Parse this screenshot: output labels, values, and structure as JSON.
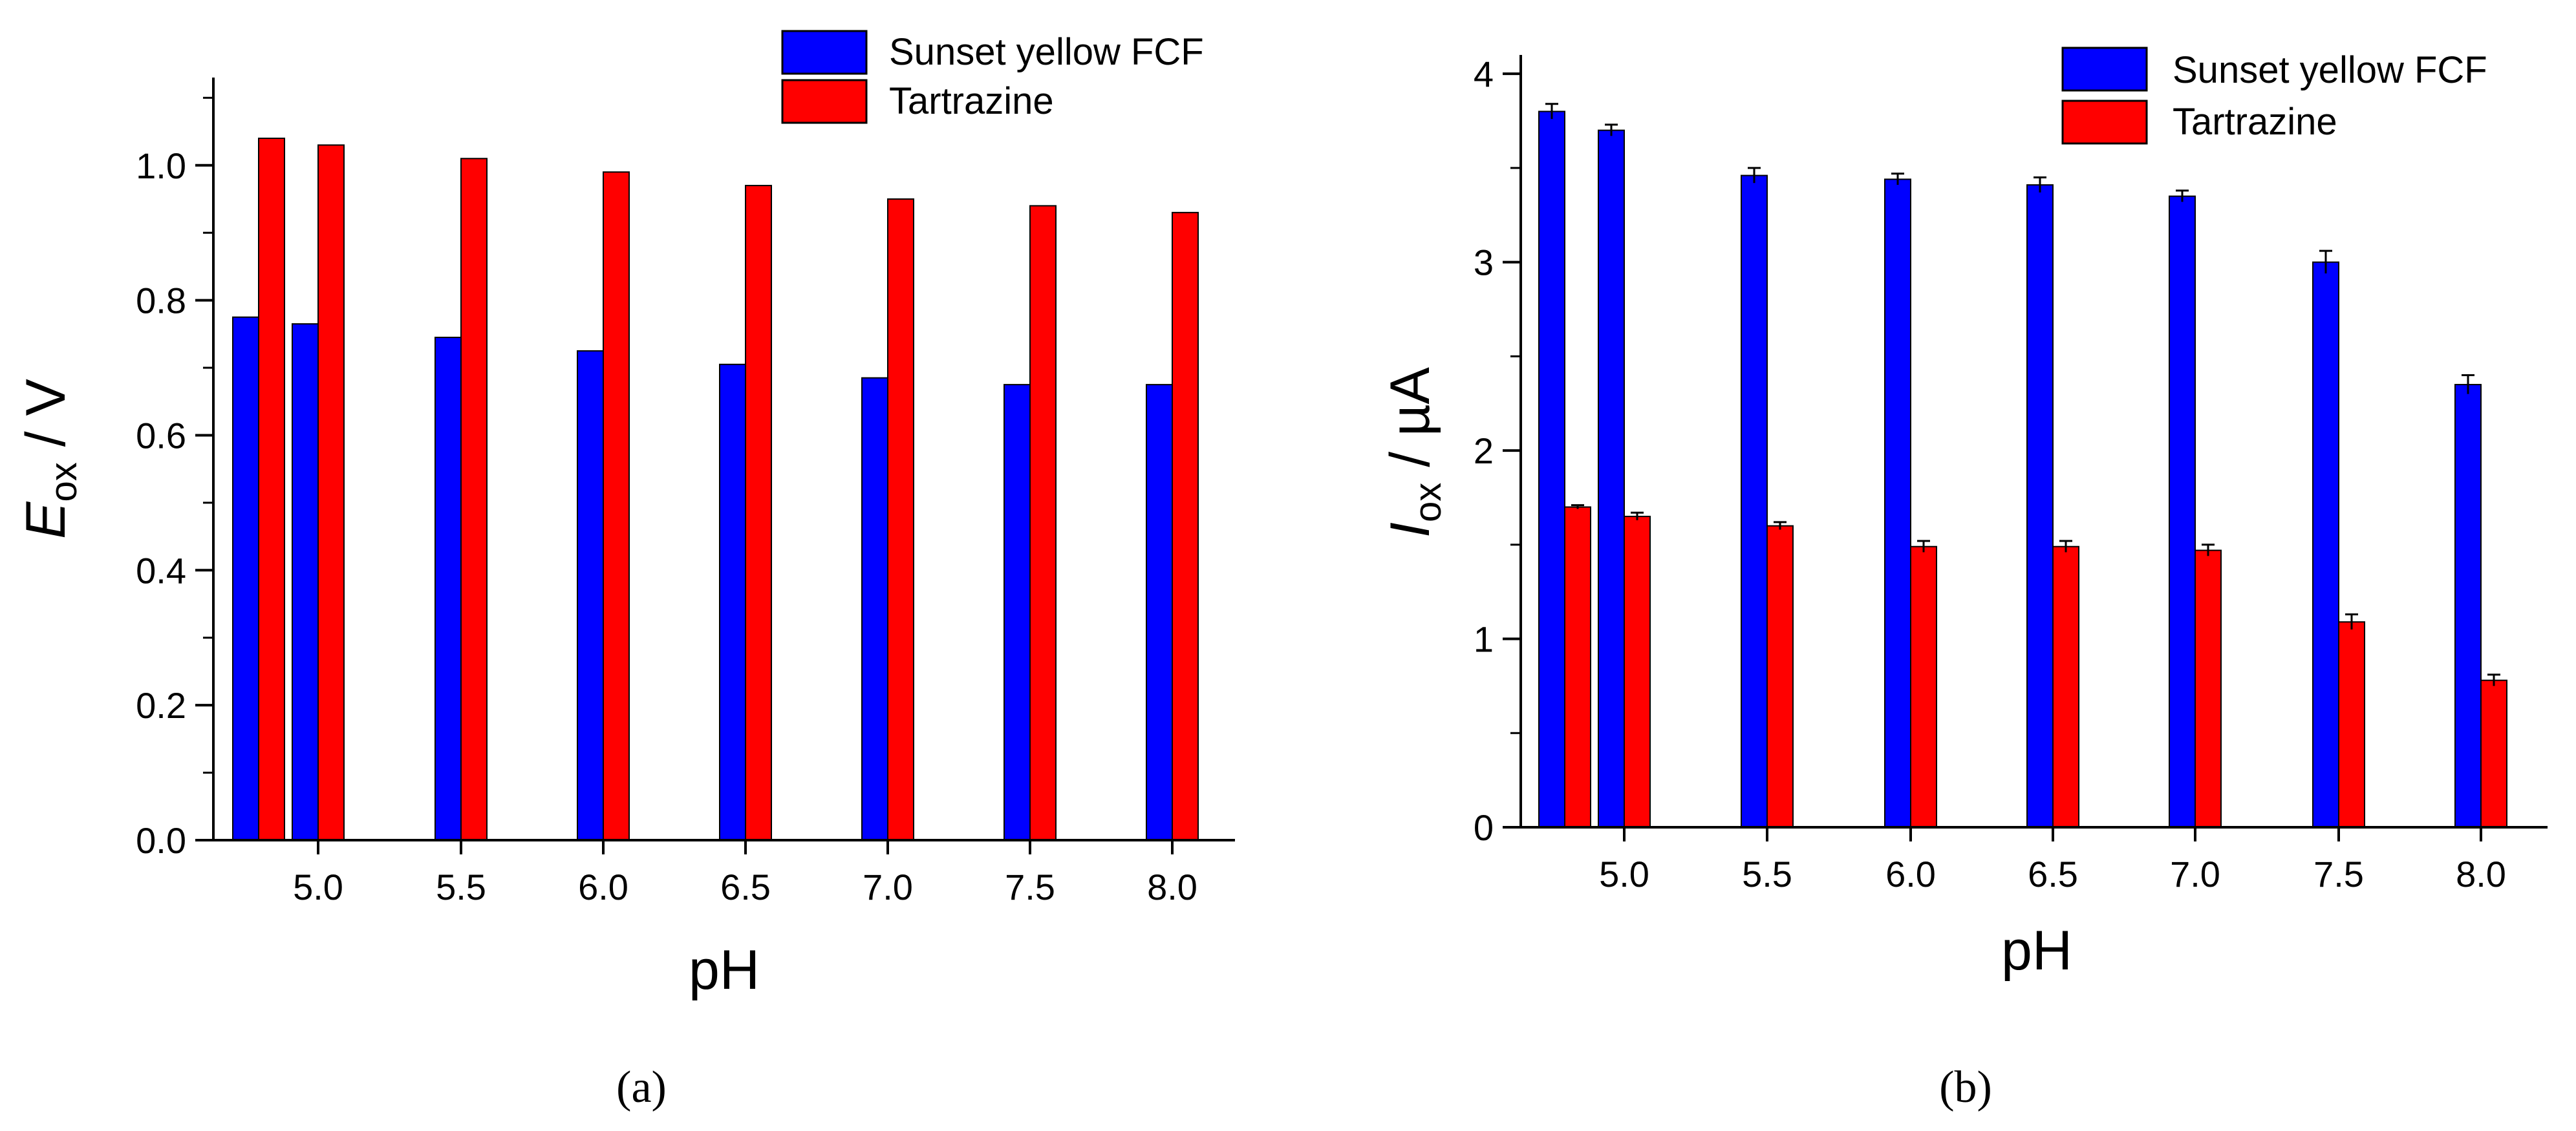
{
  "chart_data": [
    {
      "type": "bar",
      "panel_label": "(a)",
      "categories": [
        "",
        "5.0",
        "5.5",
        "6.0",
        "6.5",
        "7.0",
        "7.5",
        "8.0"
      ],
      "series": [
        {
          "name": "Sunset yellow FCF",
          "color": "#0000ff",
          "values": [
            0.775,
            0.765,
            0.745,
            0.725,
            0.705,
            0.685,
            0.675,
            0.675
          ]
        },
        {
          "name": "Tartrazine",
          "color": "#ff0000",
          "values": [
            1.04,
            1.03,
            1.01,
            0.99,
            0.97,
            0.95,
            0.94,
            0.93
          ]
        }
      ],
      "xlabel": "pH",
      "ylabel_main": "E",
      "ylabel_sub": "ox",
      "ylabel_unit": " / V",
      "ylim": [
        0,
        1.13
      ],
      "yticks": [
        "0.0",
        "0.2",
        "0.4",
        "0.6",
        "0.8",
        "1.0"
      ],
      "legend": "top-right",
      "error_bars": false
    },
    {
      "type": "bar",
      "panel_label": "(b)",
      "categories": [
        "",
        "5.0",
        "5.5",
        "6.0",
        "6.5",
        "7.0",
        "7.5",
        "8.0"
      ],
      "series": [
        {
          "name": "Sunset yellow FCF",
          "color": "#0000ff",
          "values": [
            3.8,
            3.7,
            3.46,
            3.44,
            3.41,
            3.35,
            3.0,
            2.35
          ],
          "errors": [
            0.04,
            0.03,
            0.04,
            0.03,
            0.04,
            0.03,
            0.06,
            0.05
          ]
        },
        {
          "name": "Tartrazine",
          "color": "#ff0000",
          "values": [
            1.7,
            1.65,
            1.6,
            1.49,
            1.49,
            1.47,
            1.09,
            0.78
          ],
          "errors": [
            0.01,
            0.02,
            0.02,
            0.03,
            0.03,
            0.03,
            0.04,
            0.03
          ]
        }
      ],
      "xlabel": "pH",
      "ylabel_main": "I",
      "ylabel_sub": "ox",
      "ylabel_unit": " / µA",
      "ylim": [
        0,
        4.1
      ],
      "yticks": [
        "0",
        "1",
        "2",
        "3",
        "4"
      ],
      "legend": "top-right",
      "error_bars": true
    }
  ]
}
